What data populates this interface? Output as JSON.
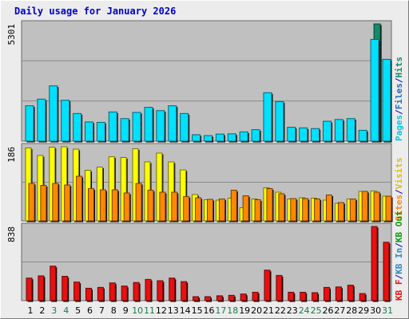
{
  "title": "Daily usage for January 2026",
  "colors": {
    "background": "#ececec",
    "plot_bg": "#c0c0c0",
    "hits": "#138c6c",
    "files": "#1ac5e0",
    "pages": "#00e0ff",
    "visits": "#ffff00",
    "sites": "#ff8800",
    "kbin": "#2a8cc8",
    "kbout": "#0a9a0a",
    "kbf": "#e81010",
    "title": "#0000cc",
    "weekend_tick": "#1a7a4a"
  },
  "chart_data": [
    {
      "type": "bar",
      "panel": "pages-files-hits",
      "categories": [
        "1",
        "2",
        "3",
        "4",
        "5",
        "6",
        "7",
        "8",
        "9",
        "10",
        "11",
        "12",
        "13",
        "14",
        "15",
        "16",
        "17",
        "18",
        "19",
        "20",
        "21",
        "22",
        "23",
        "24",
        "25",
        "26",
        "27",
        "28",
        "29",
        "30",
        "31"
      ],
      "ymax_label": "5301",
      "ylim": [
        0,
        5301
      ],
      "side_label": [
        {
          "text": "Pages",
          "color": "#00c8e8"
        },
        {
          "text": "/",
          "color": "#0000cc"
        },
        {
          "text": "Files",
          "color": "#1a6cc0"
        },
        {
          "text": "/",
          "color": "#0000cc"
        },
        {
          "text": "Hits",
          "color": "#138c6c"
        }
      ],
      "series": [
        {
          "name": "Hits",
          "values": [
            1600,
            1900,
            2500,
            1850,
            1250,
            870,
            850,
            1320,
            1020,
            1300,
            1530,
            1380,
            1600,
            1250,
            290,
            250,
            320,
            330,
            420,
            520,
            2190,
            1790,
            630,
            600,
            570,
            900,
            980,
            1020,
            490,
            5301,
            3700
          ]
        },
        {
          "name": "Files",
          "values": [
            1600,
            1900,
            2500,
            1850,
            1250,
            870,
            850,
            1320,
            1020,
            1300,
            1530,
            1380,
            1600,
            1250,
            290,
            250,
            320,
            330,
            420,
            520,
            2190,
            1790,
            630,
            600,
            570,
            900,
            980,
            1020,
            490,
            4600,
            3700
          ]
        },
        {
          "name": "Pages",
          "values": [
            1600,
            1900,
            2500,
            1850,
            1250,
            870,
            850,
            1320,
            1020,
            1300,
            1530,
            1380,
            1600,
            1250,
            290,
            250,
            320,
            330,
            420,
            520,
            2190,
            1790,
            630,
            600,
            570,
            900,
            980,
            1020,
            490,
            4600,
            3700
          ]
        }
      ]
    },
    {
      "type": "bar",
      "panel": "visits-sites",
      "categories": [
        "1",
        "2",
        "3",
        "4",
        "5",
        "6",
        "7",
        "8",
        "9",
        "10",
        "11",
        "12",
        "13",
        "14",
        "15",
        "16",
        "17",
        "18",
        "19",
        "20",
        "21",
        "22",
        "23",
        "24",
        "25",
        "26",
        "27",
        "28",
        "29",
        "30",
        "31"
      ],
      "ymax_label": "186",
      "ylim": [
        0,
        186
      ],
      "side_label": [
        {
          "text": "Sites",
          "color": "#ff8800"
        },
        {
          "text": "/",
          "color": "#0000cc"
        },
        {
          "text": "Visits",
          "color": "#e0c000"
        }
      ],
      "series": [
        {
          "name": "Visits",
          "values": [
            183,
            164,
            185,
            186,
            180,
            127,
            135,
            161,
            159,
            181,
            148,
            170,
            148,
            128,
            66,
            53,
            52,
            57,
            33,
            55,
            83,
            72,
            55,
            58,
            57,
            52,
            44,
            55,
            74,
            75,
            62
          ]
        },
        {
          "name": "Sites",
          "values": [
            94,
            89,
            94,
            90,
            112,
            81,
            78,
            78,
            70,
            94,
            77,
            72,
            72,
            61,
            58,
            54,
            55,
            77,
            63,
            53,
            81,
            68,
            56,
            56,
            55,
            65,
            46,
            55,
            74,
            72,
            62
          ]
        }
      ]
    },
    {
      "type": "bar",
      "panel": "kbf-kbin-kbout",
      "categories": [
        "1",
        "2",
        "3",
        "4",
        "5",
        "6",
        "7",
        "8",
        "9",
        "10",
        "11",
        "12",
        "13",
        "14",
        "15",
        "16",
        "17",
        "18",
        "19",
        "20",
        "21",
        "22",
        "23",
        "24",
        "25",
        "26",
        "27",
        "28",
        "29",
        "30",
        "31"
      ],
      "ymax_label": "838",
      "ylim": [
        0,
        838
      ],
      "side_label": [
        {
          "text": "KB F",
          "color": "#e81010"
        },
        {
          "text": "/",
          "color": "#0000cc"
        },
        {
          "text": "KB In",
          "color": "#2a8cc8"
        },
        {
          "text": "/",
          "color": "#0000cc"
        },
        {
          "text": "KB Out",
          "color": "#0a9a0a"
        }
      ],
      "series": [
        {
          "name": "KB F",
          "values": [
            255,
            280,
            390,
            275,
            210,
            140,
            150,
            200,
            165,
            205,
            240,
            225,
            255,
            215,
            45,
            45,
            55,
            60,
            75,
            95,
            345,
            285,
            95,
            95,
            90,
            150,
            155,
            175,
            80,
            838,
            660
          ]
        }
      ]
    }
  ],
  "x_axis": {
    "labels": [
      "1",
      "2",
      "3",
      "4",
      "5",
      "6",
      "7",
      "8",
      "9",
      "10",
      "11",
      "12",
      "13",
      "14",
      "15",
      "16",
      "17",
      "18",
      "19",
      "20",
      "21",
      "22",
      "23",
      "24",
      "25",
      "26",
      "27",
      "28",
      "29",
      "30",
      "31"
    ],
    "weekend": [
      3,
      4,
      10,
      11,
      17,
      18,
      24,
      25,
      31
    ]
  }
}
